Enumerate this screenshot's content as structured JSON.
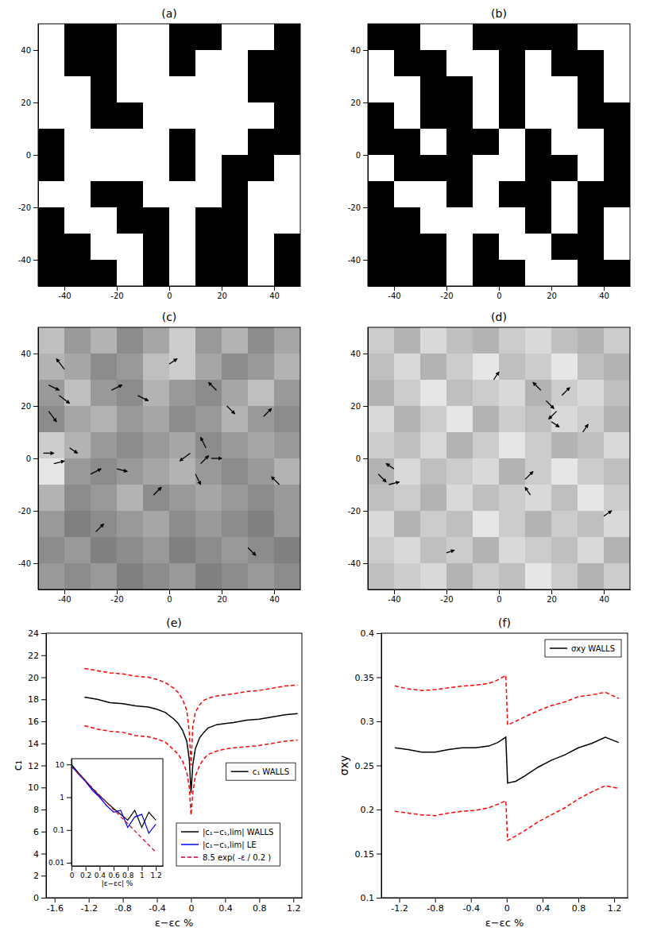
{
  "chart_data": [
    {
      "type": "heatmap",
      "title": "(a)",
      "xlim": [
        -50,
        50
      ],
      "ylim": [
        -50,
        50
      ],
      "xticks": [
        -40,
        -20,
        0,
        20,
        40
      ],
      "yticks": [
        -40,
        -20,
        0,
        20,
        40
      ],
      "zlim": [
        0,
        1
      ],
      "cells": [
        [
          1,
          0,
          0,
          1,
          1,
          0,
          0,
          1,
          1,
          0
        ],
        [
          1,
          0,
          0,
          1,
          1,
          0,
          1,
          1,
          0,
          0
        ],
        [
          1,
          1,
          0,
          1,
          1,
          1,
          1,
          1,
          0,
          0
        ],
        [
          1,
          1,
          0,
          0,
          1,
          1,
          1,
          1,
          1,
          0
        ],
        [
          0,
          1,
          1,
          1,
          1,
          0,
          1,
          1,
          0,
          0
        ],
        [
          0,
          1,
          1,
          1,
          1,
          0,
          1,
          0,
          0,
          1
        ],
        [
          1,
          1,
          0,
          0,
          1,
          1,
          1,
          0,
          1,
          1
        ],
        [
          0,
          1,
          1,
          0,
          0,
          1,
          0,
          0,
          1,
          1
        ],
        [
          0,
          0,
          1,
          1,
          0,
          1,
          0,
          0,
          1,
          0
        ],
        [
          0,
          0,
          0,
          1,
          0,
          1,
          0,
          0,
          1,
          0
        ]
      ]
    },
    {
      "type": "heatmap",
      "title": "(b)",
      "xlim": [
        -50,
        50
      ],
      "ylim": [
        -50,
        50
      ],
      "xticks": [
        -40,
        -20,
        0,
        20,
        40
      ],
      "yticks": [
        -40,
        -20,
        0,
        20,
        40
      ],
      "zlim": [
        0,
        1
      ],
      "cells": [
        [
          0,
          0,
          1,
          1,
          0,
          0,
          0,
          0,
          1,
          1
        ],
        [
          1,
          0,
          0,
          1,
          1,
          0,
          1,
          0,
          0,
          1
        ],
        [
          1,
          1,
          0,
          0,
          1,
          0,
          1,
          1,
          0,
          1
        ],
        [
          0,
          1,
          0,
          0,
          1,
          0,
          1,
          1,
          0,
          0
        ],
        [
          0,
          0,
          1,
          0,
          0,
          1,
          0,
          1,
          1,
          0
        ],
        [
          1,
          0,
          0,
          0,
          1,
          1,
          0,
          0,
          1,
          0
        ],
        [
          0,
          1,
          1,
          0,
          1,
          0,
          0,
          1,
          0,
          0
        ],
        [
          0,
          0,
          1,
          1,
          1,
          1,
          0,
          1,
          0,
          1
        ],
        [
          0,
          0,
          0,
          1,
          0,
          1,
          1,
          0,
          0,
          1
        ],
        [
          0,
          0,
          0,
          1,
          0,
          0,
          1,
          1,
          0,
          0
        ]
      ]
    },
    {
      "type": "heatmap",
      "title": "(c)",
      "xlim": [
        -50,
        50
      ],
      "ylim": [
        -50,
        50
      ],
      "xticks": [
        -40,
        -20,
        0,
        20,
        40
      ],
      "yticks": [
        -40,
        -20,
        0,
        20,
        40
      ],
      "zlim": [
        0,
        1
      ],
      "cells": [
        [
          0.75,
          0.6,
          0.7,
          0.55,
          0.65,
          0.8,
          0.6,
          0.7,
          0.55,
          0.65
        ],
        [
          0.7,
          0.65,
          0.55,
          0.6,
          0.75,
          0.8,
          0.65,
          0.55,
          0.6,
          0.7
        ],
        [
          0.6,
          0.75,
          0.6,
          0.55,
          0.7,
          0.6,
          0.55,
          0.65,
          0.75,
          0.6
        ],
        [
          0.55,
          0.65,
          0.7,
          0.6,
          0.65,
          0.55,
          0.6,
          0.7,
          0.6,
          0.55
        ],
        [
          0.8,
          0.7,
          0.6,
          0.55,
          0.6,
          0.65,
          0.55,
          0.6,
          0.65,
          0.6
        ],
        [
          0.9,
          0.6,
          0.55,
          0.6,
          0.65,
          0.7,
          0.6,
          0.55,
          0.6,
          0.7
        ],
        [
          0.7,
          0.55,
          0.6,
          0.7,
          0.55,
          0.6,
          0.65,
          0.6,
          0.55,
          0.6
        ],
        [
          0.6,
          0.5,
          0.55,
          0.6,
          0.65,
          0.55,
          0.6,
          0.55,
          0.5,
          0.6
        ],
        [
          0.55,
          0.6,
          0.5,
          0.55,
          0.6,
          0.5,
          0.55,
          0.6,
          0.55,
          0.5
        ],
        [
          0.6,
          0.55,
          0.6,
          0.5,
          0.55,
          0.6,
          0.5,
          0.55,
          0.6,
          0.55
        ]
      ],
      "arrows": [
        [
          -46,
          28,
          4,
          -2
        ],
        [
          -42,
          24,
          4,
          -3
        ],
        [
          -46,
          18,
          3,
          -4
        ],
        [
          -40,
          34,
          -3,
          4
        ],
        [
          -48,
          2,
          4,
          0
        ],
        [
          -44,
          -2,
          4,
          1
        ],
        [
          -38,
          4,
          3,
          -2
        ],
        [
          -30,
          -6,
          4,
          2
        ],
        [
          -20,
          -4,
          4,
          -1
        ],
        [
          8,
          2,
          -4,
          -3
        ],
        [
          12,
          -2,
          3,
          3
        ],
        [
          14,
          4,
          -2,
          4
        ],
        [
          10,
          -6,
          2,
          -4
        ],
        [
          16,
          0,
          4,
          0
        ],
        [
          18,
          26,
          -3,
          3
        ],
        [
          22,
          20,
          3,
          -3
        ],
        [
          -22,
          26,
          4,
          2
        ],
        [
          -12,
          24,
          4,
          -2
        ],
        [
          -28,
          -28,
          3,
          3
        ],
        [
          30,
          -34,
          3,
          -3
        ],
        [
          36,
          16,
          3,
          3
        ],
        [
          42,
          -10,
          -3,
          3
        ],
        [
          0,
          36,
          3,
          2
        ],
        [
          -6,
          -14,
          3,
          3
        ]
      ]
    },
    {
      "type": "heatmap",
      "title": "(d)",
      "xlim": [
        -50,
        50
      ],
      "ylim": [
        -50,
        50
      ],
      "xticks": [
        -40,
        -20,
        0,
        20,
        40
      ],
      "yticks": [
        -40,
        -20,
        0,
        20,
        40
      ],
      "zlim": [
        0,
        1
      ],
      "cells": [
        [
          0.8,
          0.7,
          0.85,
          0.75,
          0.7,
          0.8,
          0.85,
          0.75,
          0.7,
          0.8
        ],
        [
          0.75,
          0.85,
          0.7,
          0.8,
          0.9,
          0.75,
          0.8,
          0.9,
          0.75,
          0.7
        ],
        [
          0.7,
          0.8,
          0.9,
          0.75,
          0.8,
          0.85,
          0.7,
          0.8,
          0.85,
          0.75
        ],
        [
          0.85,
          0.7,
          0.8,
          0.9,
          0.7,
          0.8,
          0.75,
          0.85,
          0.8,
          0.7
        ],
        [
          0.8,
          0.75,
          0.85,
          0.7,
          0.8,
          0.9,
          0.8,
          0.7,
          0.75,
          0.85
        ],
        [
          0.7,
          0.85,
          0.75,
          0.8,
          0.85,
          0.7,
          0.8,
          0.9,
          0.8,
          0.75
        ],
        [
          0.75,
          0.8,
          0.7,
          0.85,
          0.75,
          0.8,
          0.85,
          0.75,
          0.9,
          0.8
        ],
        [
          0.85,
          0.7,
          0.8,
          0.75,
          0.9,
          0.8,
          0.7,
          0.8,
          0.75,
          0.85
        ],
        [
          0.8,
          0.85,
          0.75,
          0.8,
          0.7,
          0.85,
          0.8,
          0.75,
          0.85,
          0.7
        ],
        [
          0.75,
          0.8,
          0.85,
          0.7,
          0.8,
          0.75,
          0.9,
          0.8,
          0.7,
          0.8
        ]
      ],
      "arrows": [
        [
          -46,
          -6,
          3,
          -3
        ],
        [
          -42,
          -10,
          4,
          1
        ],
        [
          -40,
          -4,
          -3,
          2
        ],
        [
          18,
          22,
          3,
          -3
        ],
        [
          22,
          18,
          -3,
          -3
        ],
        [
          24,
          24,
          3,
          3
        ],
        [
          16,
          26,
          -3,
          3
        ],
        [
          20,
          14,
          3,
          -2
        ],
        [
          10,
          -8,
          3,
          3
        ],
        [
          12,
          -14,
          -2,
          3
        ],
        [
          -2,
          30,
          2,
          3
        ],
        [
          40,
          -22,
          3,
          2
        ],
        [
          -20,
          -36,
          3,
          1
        ],
        [
          32,
          10,
          2,
          3
        ]
      ]
    },
    {
      "type": "line",
      "title": "(e)",
      "xlabel": "ε−εc %",
      "ylabel": "c₁",
      "xlim": [
        -1.7,
        1.3
      ],
      "ylim": [
        0,
        24
      ],
      "xticks": [
        -1.6,
        -1.2,
        -0.8,
        -0.4,
        0,
        0.4,
        0.8,
        1.2
      ],
      "yticks": [
        0,
        2,
        4,
        6,
        8,
        10,
        12,
        14,
        16,
        18,
        20,
        22,
        24
      ],
      "legend": "center right",
      "x": [
        -1.25,
        -1.1,
        -0.95,
        -0.8,
        -0.65,
        -0.5,
        -0.4,
        -0.3,
        -0.2,
        -0.15,
        -0.1,
        -0.05,
        -0.02,
        0,
        0.02,
        0.05,
        0.1,
        0.15,
        0.2,
        0.3,
        0.4,
        0.5,
        0.65,
        0.8,
        0.95,
        1.1,
        1.25
      ],
      "series": [
        {
          "name": "c₁ WALLS",
          "color": "#000000",
          "line_style": "solid",
          "values": [
            18.2,
            18.0,
            17.7,
            17.6,
            17.4,
            17.3,
            17.1,
            16.8,
            16.2,
            15.8,
            15.2,
            14.2,
            12.5,
            9.5,
            12.0,
            13.5,
            14.5,
            15.0,
            15.4,
            15.7,
            15.8,
            15.9,
            16.1,
            16.2,
            16.4,
            16.6,
            16.7
          ]
        },
        {
          "color": "#ff0000",
          "line_style": "dashed",
          "values": [
            20.8,
            20.6,
            20.4,
            20.3,
            20.1,
            20.0,
            19.8,
            19.5,
            19.0,
            18.6,
            18.0,
            17.0,
            15.0,
            12.0,
            15.5,
            16.8,
            17.5,
            17.9,
            18.1,
            18.3,
            18.4,
            18.5,
            18.7,
            18.8,
            19.0,
            19.2,
            19.3
          ]
        },
        {
          "color": "#ff0000",
          "line_style": "dashed",
          "values": [
            15.6,
            15.3,
            15.1,
            15.0,
            14.7,
            14.6,
            14.4,
            14.1,
            13.4,
            13.0,
            12.4,
            11.4,
            10.0,
            7.5,
            9.5,
            11.0,
            12.0,
            12.6,
            13.0,
            13.3,
            13.5,
            13.6,
            13.7,
            13.8,
            14.0,
            14.2,
            14.3
          ]
        }
      ]
    },
    {
      "type": "line",
      "xlabel": "|ε−εc| %",
      "log": "y",
      "xlim": [
        0,
        1.3
      ],
      "ylim": [
        0.008,
        15
      ],
      "xticks": [
        0,
        0.2,
        0.4,
        0.6,
        0.8,
        1,
        1.2
      ],
      "yticks": [
        0.01,
        0.1,
        1,
        10
      ],
      "legend": "right",
      "series": [
        {
          "name": "|c₁−c₁,lim| WALLS",
          "color": "#000000",
          "line_style": "solid",
          "x": [
            0,
            0.1,
            0.2,
            0.3,
            0.4,
            0.5,
            0.6,
            0.7,
            0.8,
            0.9,
            1.0,
            1.1,
            1.2
          ],
          "values": [
            10,
            5.5,
            3.2,
            1.8,
            1.1,
            0.7,
            0.45,
            0.3,
            0.2,
            0.4,
            0.12,
            0.35,
            0.2
          ]
        },
        {
          "name": "|c₁−c₁,lim| LE",
          "color": "#0000ff",
          "line_style": "solid",
          "x": [
            0,
            0.1,
            0.2,
            0.3,
            0.4,
            0.5,
            0.6,
            0.7,
            0.8,
            0.9,
            1.0,
            1.1,
            1.2
          ],
          "values": [
            9.5,
            5.0,
            3.0,
            1.6,
            1.0,
            0.55,
            0.35,
            0.4,
            0.12,
            0.25,
            0.3,
            0.08,
            0.15
          ]
        },
        {
          "name": "8.5 exp( -ε / 0.2 )",
          "color": "#cc0033",
          "line_style": "dashed",
          "x": [
            0,
            0.2,
            0.4,
            0.6,
            0.8,
            1.0,
            1.2
          ],
          "values": [
            8.5,
            3.13,
            1.15,
            0.42,
            0.156,
            0.057,
            0.021
          ]
        }
      ]
    },
    {
      "type": "line",
      "title": "(f)",
      "xlabel": "ε−εc %",
      "ylabel": "σxy",
      "xlim": [
        -1.4,
        1.35
      ],
      "ylim": [
        0.1,
        0.4
      ],
      "xticks": [
        -1.2,
        -0.8,
        -0.4,
        0,
        0.4,
        0.8,
        1.2
      ],
      "yticks": [
        0.1,
        0.15,
        0.2,
        0.25,
        0.3,
        0.35,
        0.4
      ],
      "legend": "upper right",
      "x": [
        -1.25,
        -1.1,
        -0.95,
        -0.8,
        -0.65,
        -0.5,
        -0.35,
        -0.2,
        -0.1,
        -0.01,
        0.01,
        0.1,
        0.2,
        0.35,
        0.5,
        0.65,
        0.8,
        0.95,
        1.1,
        1.25
      ],
      "series": [
        {
          "name": "σxy WALLS",
          "color": "#000000",
          "line_style": "solid",
          "values": [
            0.27,
            0.268,
            0.265,
            0.265,
            0.268,
            0.27,
            0.27,
            0.272,
            0.276,
            0.282,
            0.23,
            0.232,
            0.238,
            0.248,
            0.256,
            0.262,
            0.27,
            0.275,
            0.282,
            0.276
          ]
        },
        {
          "color": "#ff0000",
          "line_style": "dashed",
          "values": [
            0.34,
            0.337,
            0.335,
            0.336,
            0.338,
            0.34,
            0.341,
            0.343,
            0.347,
            0.352,
            0.296,
            0.3,
            0.305,
            0.312,
            0.318,
            0.322,
            0.328,
            0.33,
            0.333,
            0.326
          ]
        },
        {
          "color": "#ff0000",
          "line_style": "dashed",
          "values": [
            0.198,
            0.196,
            0.194,
            0.193,
            0.196,
            0.198,
            0.199,
            0.202,
            0.206,
            0.21,
            0.165,
            0.17,
            0.176,
            0.186,
            0.194,
            0.202,
            0.212,
            0.22,
            0.227,
            0.224
          ]
        }
      ]
    }
  ]
}
